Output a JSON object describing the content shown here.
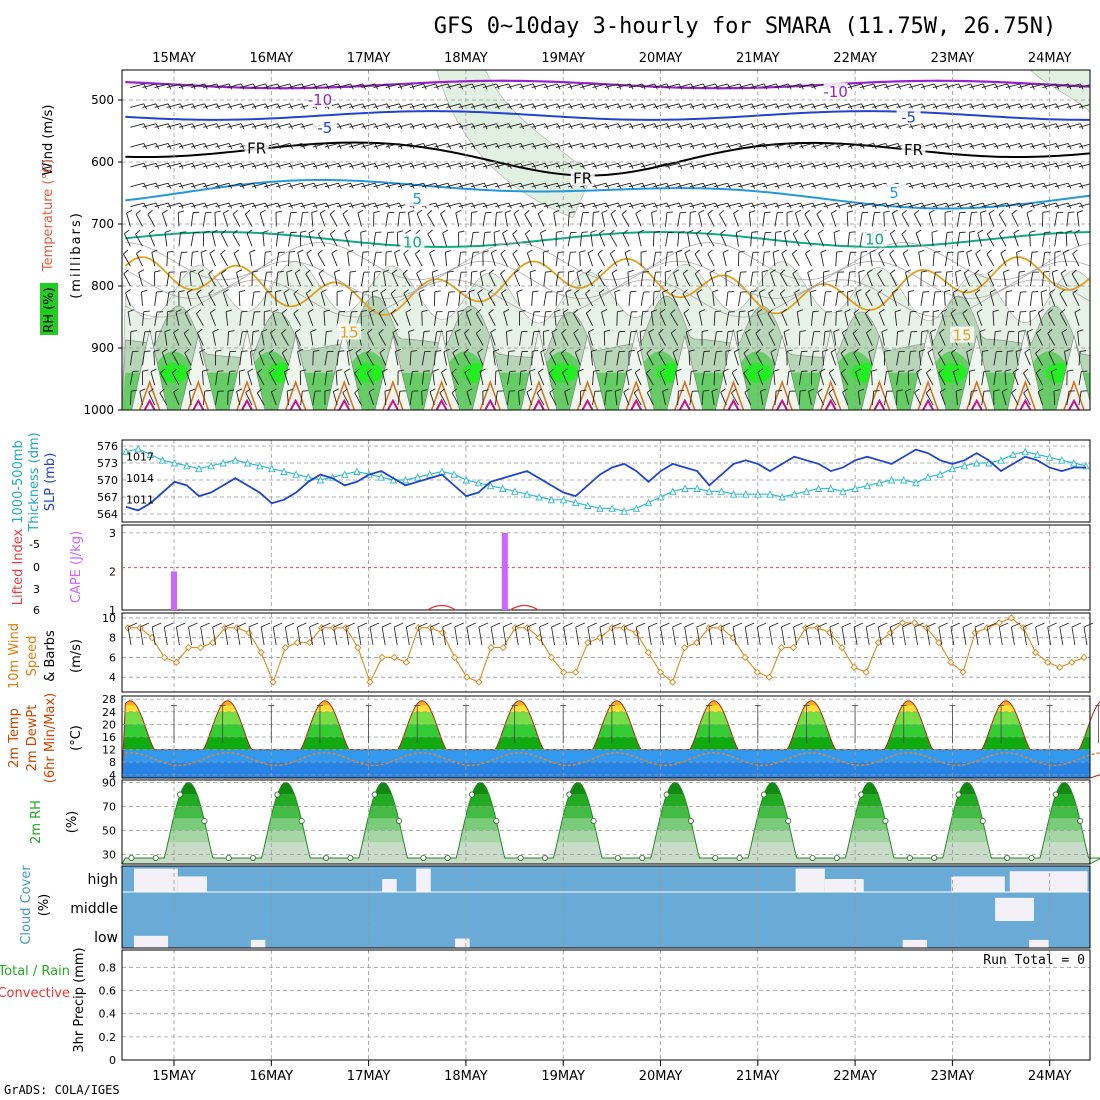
{
  "title": "GFS 0~10day 3-hourly for SMARA (11.75W, 26.75N)",
  "credit": "GrADS: COLA/IGES",
  "dates": [
    "15MAY",
    "16MAY",
    "17MAY",
    "18MAY",
    "19MAY",
    "20MAY",
    "21MAY",
    "22MAY",
    "23MAY",
    "24MAY"
  ],
  "panels": {
    "upper": {
      "labels": {
        "wind": "Wind (m/s)",
        "temperature": "Temperature (°C)",
        "rh": "RH (%)",
        "mb": "(millibars)"
      },
      "yticks": [
        500,
        600,
        700,
        800,
        900,
        1000
      ],
      "contour_labels": [
        {
          "text": "-10",
          "p": 500,
          "day": 1.5,
          "color": "#9922cc"
        },
        {
          "text": "-10",
          "p": 487,
          "day": 6.8,
          "color": "#9922cc"
        },
        {
          "text": "-5",
          "p": 545,
          "day": 1.55,
          "color": "#2244cc"
        },
        {
          "text": "-5",
          "p": 528,
          "day": 7.55,
          "color": "#2244cc"
        },
        {
          "text": "FR",
          "p": 578,
          "day": 0.85,
          "color": "#000000"
        },
        {
          "text": "FR",
          "p": 627,
          "day": 4.2,
          "color": "#000000"
        },
        {
          "text": "FR",
          "p": 581,
          "day": 7.6,
          "color": "#000000"
        },
        {
          "text": "5",
          "p": 660,
          "day": 2.5,
          "color": "#2299dd"
        },
        {
          "text": "5",
          "p": 650,
          "day": 7.4,
          "color": "#2299dd"
        },
        {
          "text": "10",
          "p": 730,
          "day": 2.45,
          "color": "#11aa88"
        },
        {
          "text": "10",
          "p": 725,
          "day": 7.2,
          "color": "#11aa88"
        },
        {
          "text": "15",
          "p": 875,
          "day": 1.8,
          "color": "#e0a020"
        },
        {
          "text": "15",
          "p": 880,
          "day": 8.1,
          "color": "#e0a020"
        }
      ]
    },
    "thickness": {
      "labels": {
        "thickness": "1000-500mb",
        "thickness2": "Thickness (dm)",
        "slp": "SLP (mb)"
      },
      "thickness_ticks": [
        564,
        567,
        570,
        573,
        576
      ],
      "slp_ticks": [
        1011,
        1014,
        1017
      ]
    },
    "li": {
      "labels": {
        "li": "Lifted Index",
        "cape": "CAPE (J/kg)"
      },
      "li_ticks": [
        -5,
        0,
        3,
        6
      ],
      "cape_ticks": [
        1,
        2,
        3
      ]
    },
    "wind10": {
      "labels": {
        "a": "10m Wind",
        "b": "Speed",
        "c": "& Barbs",
        "unit": "(m/s)"
      },
      "yticks": [
        4,
        6,
        8,
        10
      ]
    },
    "temp": {
      "labels": {
        "a": "2m Temp",
        "b": "2m DewPt",
        "c": "(6hr Min/Max)",
        "unit": "(°C)"
      },
      "yticks": [
        4,
        8,
        12,
        16,
        20,
        24,
        28
      ]
    },
    "rh": {
      "labels": {
        "a": "2m RH",
        "unit": "(%)"
      },
      "yticks": [
        30,
        50,
        70,
        90
      ]
    },
    "cloud": {
      "labels": {
        "a": "Cloud Cover",
        "unit": "(%)"
      },
      "levels": [
        "high",
        "middle",
        "low"
      ]
    },
    "precip": {
      "labels": {
        "a": "Total / Rain",
        "b": "Convective",
        "c": "3hr Precip (mm)"
      },
      "yticks": [
        0,
        0.2,
        0.4,
        0.6,
        0.8
      ],
      "run_total": "Run Total = 0"
    }
  },
  "colors": {
    "purple": "#9922cc",
    "blue": "#2244cc",
    "lightblue": "#2299dd",
    "teal": "#11aa88",
    "orange": "#e0a020",
    "cyan": "#33bbcc",
    "slp": "#2244cc",
    "cape": "#cc66ff",
    "li": "#ee3333",
    "wind": "#e08820",
    "cloudbg": "#6aaad6",
    "cloudgap": "#f4f0f8"
  },
  "chart_data": {
    "type": "line",
    "time_start": "15MAY",
    "time_step": "3-hourly",
    "n_steps": 80,
    "slp": [
      1010,
      1009.5,
      1010.5,
      1012,
      1013.5,
      1013,
      1011.5,
      1012,
      1013,
      1014,
      1013,
      1012,
      1010.5,
      1011,
      1012,
      1013.5,
      1014.5,
      1014,
      1013,
      1013.5,
      1014.5,
      1015,
      1014,
      1013,
      1013.5,
      1014,
      1014.5,
      1013,
      1011.5,
      1012,
      1013.5,
      1014,
      1014.5,
      1015,
      1014,
      1013,
      1012,
      1011.5,
      1013,
      1014.5,
      1015.5,
      1016,
      1015,
      1013.5,
      1015,
      1016,
      1015.5,
      1015,
      1013,
      1014.5,
      1016,
      1016.5,
      1016,
      1015,
      1016,
      1017,
      1016.5,
      1016,
      1015,
      1015.5,
      1016.5,
      1017,
      1016.5,
      1016,
      1017,
      1018,
      1017.5,
      1016.5,
      1016,
      1016.5,
      1017.5,
      1016.5,
      1015,
      1016,
      1017,
      1016.5,
      1015.5,
      1015,
      1015.5,
      1015.5
    ],
    "thickness": [
      575,
      575.5,
      574.5,
      573.5,
      573,
      572.5,
      572,
      572.5,
      573,
      573.5,
      573,
      572.5,
      572,
      571.5,
      571,
      570.5,
      570,
      570.5,
      571,
      571.5,
      571,
      570.5,
      570,
      570,
      570.5,
      571,
      571.5,
      571,
      570,
      569.5,
      569,
      568.5,
      568,
      567.5,
      567,
      566.5,
      566.5,
      566,
      565.5,
      565,
      565,
      564.5,
      565,
      566,
      567,
      568,
      568.5,
      568.5,
      568,
      568,
      567.5,
      567.5,
      567.5,
      567.5,
      567,
      567.5,
      568,
      568.5,
      568.5,
      568,
      568.5,
      569,
      569.5,
      570,
      570,
      569.5,
      570.5,
      571,
      572,
      572.5,
      573,
      573,
      573.5,
      574.5,
      575,
      574.5,
      574,
      573.5,
      573,
      572.5
    ],
    "cape": [
      {
        "day": 0.0,
        "value": 2.0
      },
      {
        "day": 3.4,
        "value": 3.0
      }
    ],
    "lifted_index": [
      {
        "day": 2.75,
        "value": 5.8
      },
      {
        "day": 3.6,
        "value": 5.9
      }
    ],
    "wind10": [
      9,
      9,
      8,
      6,
      5.5,
      7,
      7,
      7.5,
      9,
      9,
      8.5,
      6.5,
      3.5,
      7,
      7.5,
      7.5,
      9,
      9,
      9,
      7,
      3.5,
      6,
      6,
      5.5,
      9,
      9,
      8.5,
      6,
      4,
      3.5,
      7,
      7,
      9,
      9,
      8,
      6,
      4.5,
      4.5,
      7.5,
      8,
      9,
      9,
      8.5,
      6.5,
      4.5,
      3.5,
      7,
      7.5,
      9,
      9,
      8,
      6,
      4.5,
      4,
      7,
      7,
      9,
      9,
      8.5,
      7,
      5,
      4.5,
      7.5,
      8.5,
      9.5,
      9.5,
      9,
      7.5,
      5.5,
      4.5,
      8.5,
      9,
      9.5,
      10,
      9,
      6.5,
      5.5,
      5,
      5.5,
      6
    ],
    "temp2m_pattern": {
      "min": 12,
      "max": 27.5,
      "phase_max_day_fraction": 0.55
    },
    "dewpoint2m_range": [
      7,
      11
    ],
    "rh2m_pattern": {
      "min": 27,
      "max": 90
    },
    "cloud_high_cells": [
      {
        "day": 0.0,
        "width": 0.45,
        "level": 0.9
      },
      {
        "day": 0.45,
        "width": 0.3,
        "level": 0.6
      },
      {
        "day": 2.55,
        "width": 0.15,
        "level": 0.5
      },
      {
        "day": 2.9,
        "width": 0.15,
        "level": 0.9
      },
      {
        "day": 6.8,
        "width": 0.3,
        "level": 0.9
      },
      {
        "day": 7.1,
        "width": 0.4,
        "level": 0.5
      },
      {
        "day": 8.4,
        "width": 0.55,
        "level": 0.6
      },
      {
        "day": 9.0,
        "width": 0.8,
        "level": 0.8
      }
    ],
    "cloud_mid_cells": [
      {
        "day": 8.85,
        "width": 0.4,
        "level": 0.8
      }
    ],
    "cloud_low_cells": [
      {
        "day": 0.0,
        "width": 0.35,
        "level": 0.45
      },
      {
        "day": 1.2,
        "width": 0.15,
        "level": 0.3
      },
      {
        "day": 3.3,
        "width": 0.15,
        "level": 0.35
      },
      {
        "day": 7.9,
        "width": 0.25,
        "level": 0.3
      },
      {
        "day": 9.2,
        "width": 0.2,
        "level": 0.3
      }
    ],
    "precip_total": 0
  }
}
